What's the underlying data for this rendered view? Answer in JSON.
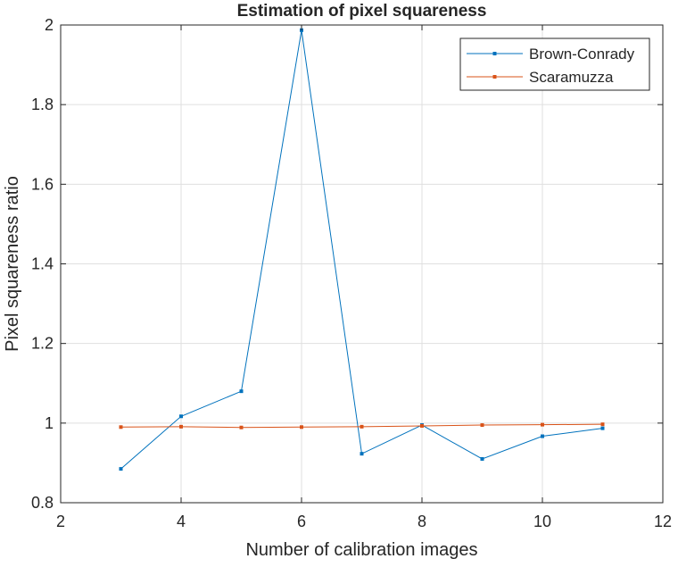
{
  "chart_data": {
    "type": "line",
    "title": "Estimation of pixel squareness",
    "xlabel": "Number of calibration images",
    "ylabel": "Pixel squareness ratio",
    "xlim": [
      2,
      12
    ],
    "ylim": [
      0.8,
      2
    ],
    "xticks": [
      2,
      4,
      6,
      8,
      10,
      12
    ],
    "yticks": [
      0.8,
      1,
      1.2,
      1.4,
      1.6,
      1.8,
      2
    ],
    "xtick_labels": [
      "2",
      "4",
      "6",
      "8",
      "10",
      "12"
    ],
    "ytick_labels": [
      "0.8",
      "1",
      "1.2",
      "1.4",
      "1.6",
      "1.8",
      "2"
    ],
    "grid": true,
    "legend_position": "top-right",
    "x": [
      3,
      4,
      5,
      6,
      7,
      8,
      9,
      10,
      11
    ],
    "series": [
      {
        "name": "Brown-Conrady",
        "color": "#0072BD",
        "values": [
          0.885,
          1.017,
          1.08,
          1.987,
          0.923,
          0.995,
          0.91,
          0.967,
          0.987
        ]
      },
      {
        "name": "Scaramuzza",
        "color": "#D95319",
        "values": [
          0.99,
          0.991,
          0.989,
          0.99,
          0.991,
          0.993,
          0.995,
          0.996,
          0.997
        ]
      }
    ]
  }
}
